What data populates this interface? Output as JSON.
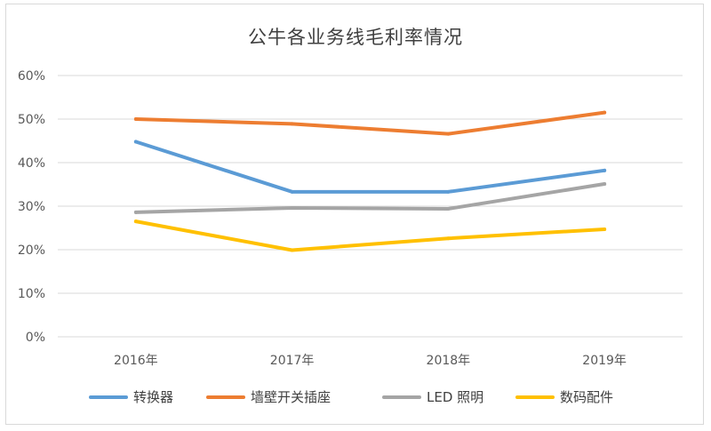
{
  "chart_data": {
    "type": "line",
    "title": "公牛各业务线毛利率情况",
    "categories": [
      "2016年",
      "2017年",
      "2018年",
      "2019年"
    ],
    "ylim": [
      0,
      60
    ],
    "yticks": [
      "0%",
      "10%",
      "20%",
      "30%",
      "40%",
      "50%",
      "60%"
    ],
    "ytick_values": [
      0,
      10,
      20,
      30,
      40,
      50,
      60
    ],
    "grid": true,
    "legend_position": "bottom",
    "series": [
      {
        "name": "转换器",
        "color": "#5b9bd5",
        "values": [
          44.8,
          33.3,
          33.3,
          38.2
        ]
      },
      {
        "name": "墙壁开关插座",
        "color": "#ed7d31",
        "values": [
          50.0,
          48.9,
          46.6,
          51.5
        ]
      },
      {
        "name": "LED 照明",
        "color": "#a5a5a5",
        "values": [
          28.6,
          29.6,
          29.4,
          35.1
        ]
      },
      {
        "name": "数码配件",
        "color": "#ffc000",
        "values": [
          26.5,
          19.9,
          22.6,
          24.7
        ]
      }
    ]
  }
}
